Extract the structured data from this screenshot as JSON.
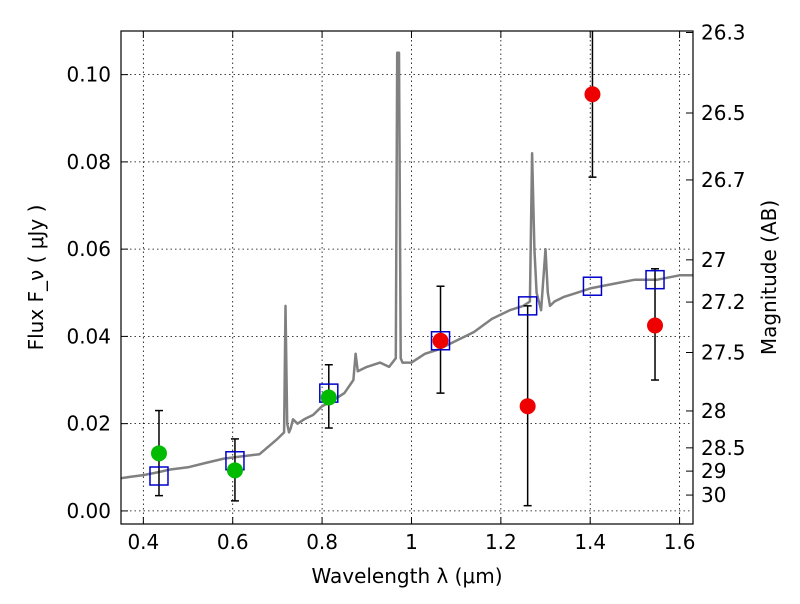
{
  "chart_data": {
    "type": "scatter",
    "xlabel": "Wavelength  λ (μm)",
    "ylabel": "Flux  F_ν  ( μJy )",
    "y2label": "Magnitude (AB)",
    "xlim": [
      0.35,
      1.63
    ],
    "ylim": [
      -0.003,
      0.11
    ],
    "grid": true,
    "x_ticks": [
      0.4,
      0.6,
      0.8,
      1.0,
      1.2,
      1.4,
      1.6
    ],
    "x_tick_labels": [
      "0.4",
      "0.6",
      "0.8",
      "1",
      "1.2",
      "1.4",
      "1.6"
    ],
    "y_ticks": [
      0.0,
      0.02,
      0.04,
      0.06,
      0.08,
      0.1
    ],
    "y_tick_labels": [
      "0.00",
      "0.02",
      "0.04",
      "0.06",
      "0.08",
      "0.10"
    ],
    "mag_ticks": [
      26.3,
      26.5,
      26.7,
      27,
      27.2,
      27.5,
      28,
      28.5,
      29,
      30
    ],
    "mag_tick_labels": [
      "26.3",
      "26.5",
      "26.7",
      "27",
      "27.2",
      "27.5",
      "28",
      "28.5",
      "29",
      "30"
    ],
    "spectrum": {
      "color": "#808080",
      "x": [
        0.35,
        0.37,
        0.4,
        0.43,
        0.46,
        0.5,
        0.54,
        0.58,
        0.62,
        0.66,
        0.7,
        0.715,
        0.718,
        0.722,
        0.726,
        0.73,
        0.735,
        0.745,
        0.76,
        0.78,
        0.8,
        0.82,
        0.85,
        0.87,
        0.875,
        0.88,
        0.9,
        0.93,
        0.95,
        0.965,
        0.968,
        0.972,
        0.976,
        0.98,
        1.0,
        1.03,
        1.06,
        1.1,
        1.14,
        1.18,
        1.22,
        1.25,
        1.265,
        1.27,
        1.275,
        1.28,
        1.29,
        1.3,
        1.305,
        1.31,
        1.32,
        1.34,
        1.37,
        1.4,
        1.45,
        1.5,
        1.55,
        1.6,
        1.63
      ],
      "y": [
        0.0075,
        0.0078,
        0.0082,
        0.0088,
        0.0095,
        0.01,
        0.011,
        0.012,
        0.0125,
        0.013,
        0.0165,
        0.018,
        0.047,
        0.02,
        0.018,
        0.019,
        0.021,
        0.02,
        0.021,
        0.022,
        0.024,
        0.025,
        0.027,
        0.03,
        0.036,
        0.032,
        0.033,
        0.034,
        0.033,
        0.035,
        0.105,
        0.105,
        0.035,
        0.034,
        0.034,
        0.036,
        0.037,
        0.039,
        0.041,
        0.044,
        0.046,
        0.047,
        0.048,
        0.082,
        0.06,
        0.05,
        0.046,
        0.06,
        0.05,
        0.047,
        0.048,
        0.049,
        0.05,
        0.051,
        0.052,
        0.053,
        0.053,
        0.054,
        0.054
      ]
    },
    "series": [
      {
        "marker": "square",
        "color": "#0000cc",
        "x": [
          0.435,
          0.605,
          0.815,
          1.065,
          1.26,
          1.405,
          1.545
        ],
        "y": [
          0.008,
          0.0115,
          0.027,
          0.039,
          0.047,
          0.0515,
          0.053
        ]
      },
      {
        "marker": "circle",
        "color": "#00bb00",
        "x": [
          0.435,
          0.605,
          0.815
        ],
        "y": [
          0.0132,
          0.0093,
          0.026
        ],
        "err_low": [
          0.0035,
          0.0023,
          0.019
        ],
        "err_high": [
          0.023,
          0.0165,
          0.0335
        ]
      },
      {
        "marker": "circle",
        "color": "#ee0000",
        "x": [
          1.065,
          1.26,
          1.405,
          1.545
        ],
        "y": [
          0.039,
          0.024,
          0.0955,
          0.0425
        ],
        "err_low": [
          0.027,
          0.0012,
          0.0765,
          0.03
        ],
        "err_high": [
          0.0515,
          0.047,
          0.11,
          0.0555
        ]
      }
    ]
  }
}
